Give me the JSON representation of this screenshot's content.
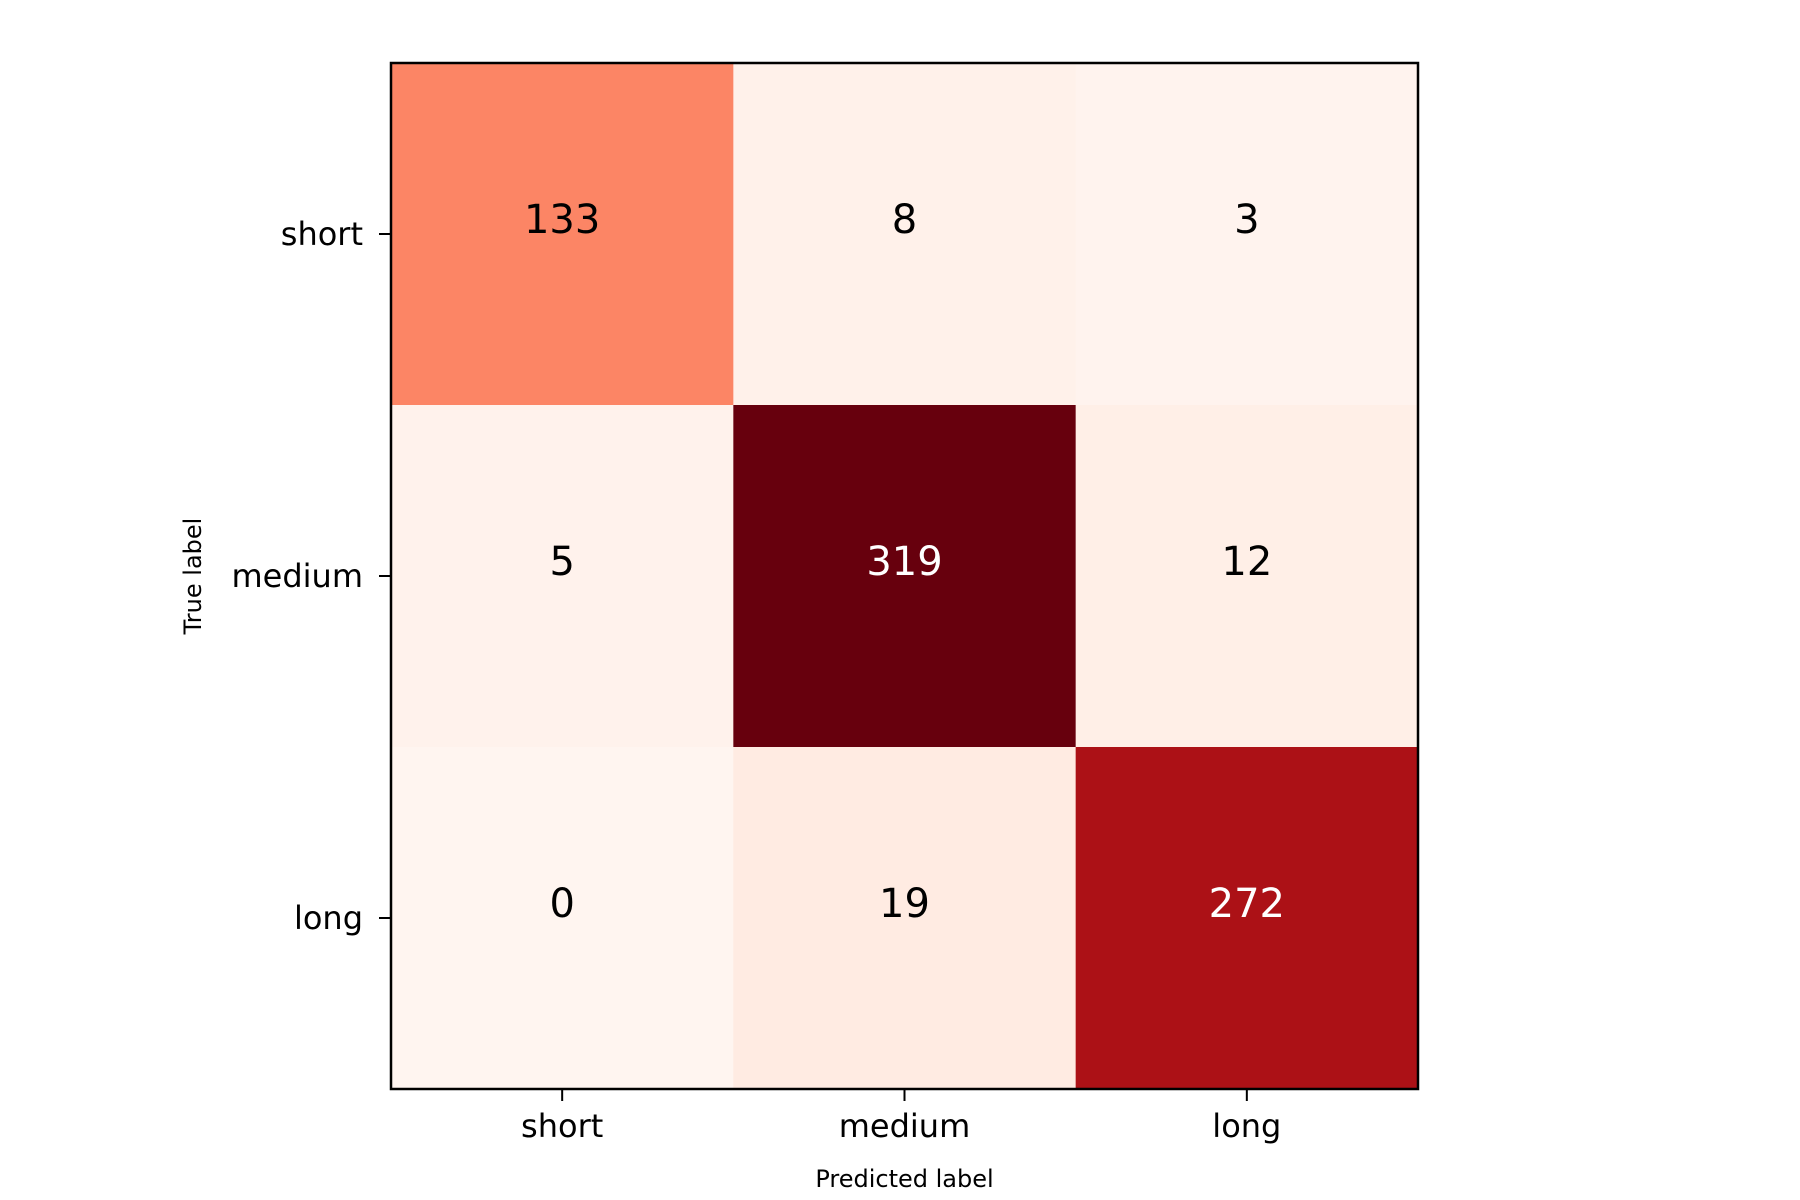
{
  "chart_data": {
    "type": "heatmap",
    "title": "",
    "xlabel": "Predicted label",
    "ylabel": "True label",
    "x_categories": [
      "short",
      "medium",
      "long"
    ],
    "y_categories": [
      "short",
      "medium",
      "long"
    ],
    "values": [
      [
        133,
        8,
        3
      ],
      [
        5,
        319,
        12
      ],
      [
        0,
        19,
        272
      ]
    ],
    "value_range": [
      0,
      319
    ],
    "colormap": "Reds",
    "grid": false,
    "legend": "none"
  }
}
